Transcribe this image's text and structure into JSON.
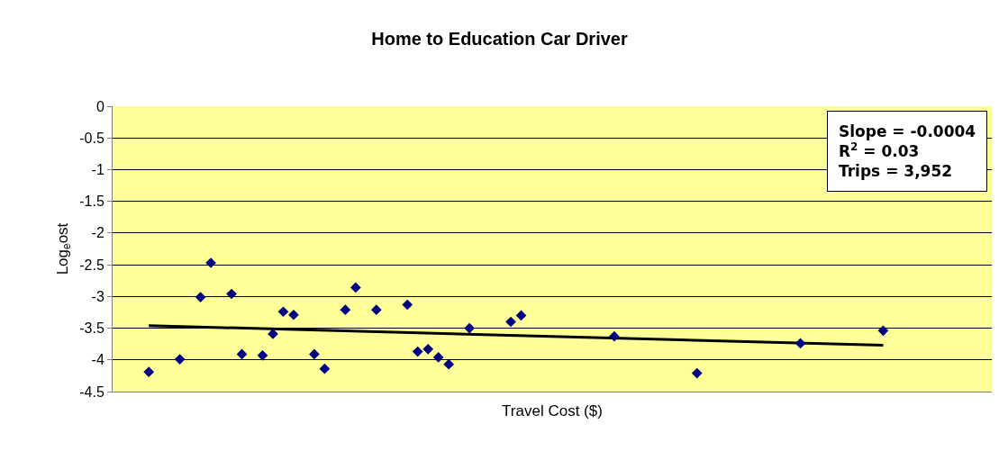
{
  "chart_data": {
    "type": "scatter",
    "title": "Home to Education Car Driver",
    "xlabel": "Travel Cost ($)",
    "ylabel": "Log$_{e}$ost",
    "categories": [
      null,
      null,
      null,
      null,
      null,
      null,
      null,
      null,
      null,
      null,
      null,
      null,
      null,
      null,
      null,
      null,
      null,
      null,
      null,
      null,
      null,
      null,
      null,
      null,
      null,
      null,
      null,
      null,
      null,
      null,
      null,
      null,
      null,
      null,
      null,
      null,
      null,
      null,
      null,
      null,
      null,
      null,
      null,
      null,
      null,
      null,
      null,
      null,
      null,
      null,
      null,
      null,
      null,
      null,
      null,
      null,
      null,
      null,
      null,
      null,
      null,
      null,
      null,
      null,
      null,
      null,
      null,
      null,
      null,
      null,
      null,
      null,
      null,
      null,
      null,
      null,
      null,
      null,
      null,
      null,
      null,
      null,
      null,
      null,
      null
    ],
    "series": [
      {
        "color": "#000080",
        "marker": "diamond",
        "values": [
          null,
          null,
          null,
          -4.19,
          null,
          null,
          -3.99,
          null,
          -3.01,
          -2.47,
          null,
          -2.96,
          -3.91,
          null,
          -3.93,
          -3.59,
          -3.24,
          -3.29,
          null,
          -3.91,
          -4.14,
          null,
          -3.21,
          -2.86,
          null,
          -3.21,
          null,
          null,
          -3.13,
          -3.87,
          -3.83,
          -3.96,
          -4.07,
          null,
          -3.5,
          null,
          null,
          null,
          -3.4,
          -3.3,
          null,
          null,
          null,
          null,
          null,
          null,
          null,
          null,
          -3.63,
          null,
          null,
          null,
          null,
          null,
          null,
          null,
          -4.21,
          null,
          null,
          null,
          null,
          null,
          null,
          null,
          null,
          null,
          -3.74,
          null,
          null,
          null,
          null,
          null,
          null,
          null,
          -3.54,
          null,
          null,
          null,
          null,
          null,
          null,
          null,
          null,
          null,
          null
        ]
      },
      {
        "type": "line",
        "color": "#000000",
        "marker": "none",
        "values": [
          null,
          null,
          null,
          -3.46,
          null,
          null,
          null,
          null,
          null,
          null,
          null,
          null,
          null,
          null,
          null,
          null,
          null,
          null,
          null,
          null,
          null,
          null,
          null,
          null,
          null,
          null,
          null,
          null,
          null,
          null,
          null,
          null,
          null,
          null,
          null,
          null,
          null,
          null,
          null,
          null,
          null,
          null,
          null,
          null,
          null,
          null,
          null,
          null,
          null,
          null,
          null,
          null,
          null,
          null,
          null,
          null,
          null,
          null,
          null,
          null,
          null,
          null,
          null,
          null,
          null,
          null,
          null,
          null,
          null,
          null,
          null,
          null,
          null,
          null,
          -3.77,
          null,
          null,
          null,
          null,
          null,
          null,
          null,
          null,
          null,
          null
        ]
      }
    ],
    "ylim": [
      -4.5,
      0
    ],
    "yticks": [
      0,
      -0.5,
      -1,
      -1.5,
      -2,
      -2.5,
      -3,
      -3.5,
      -4,
      -4.5
    ],
    "grid": "y",
    "legend": false,
    "tick_labels": "y",
    "annotations": [
      "Slope = -0.0004\nR$^{2}$ = 0.03\nTrips = 3,952"
    ]
  }
}
